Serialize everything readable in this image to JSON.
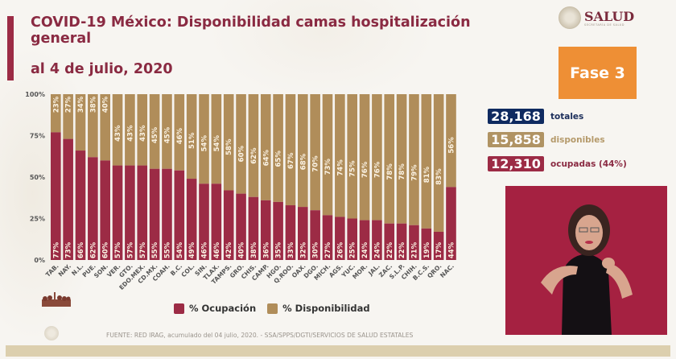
{
  "header": {
    "title": "COVID-19 México: Disponibilidad camas hospitalización general",
    "subtitle": "al 4 de julio, 2020"
  },
  "logo": {
    "icon": "coat-of-arms-seal",
    "name": "SALUD",
    "sub": "SECRETARÍA DE SALUD"
  },
  "phase": {
    "label": "Fase 3",
    "color": "#ee8f35"
  },
  "stats": [
    {
      "value": "28,168",
      "label": "totales",
      "box_color": "#0f2a60",
      "label_color": "#1b2d5a"
    },
    {
      "value": "15,858",
      "label": "disponibles",
      "box_color": "#b09363",
      "label_color": "#b59a6b"
    },
    {
      "value": "12,310",
      "label": "ocupadas (44%)",
      "box_color": "#9c2b45",
      "label_color": "#8a2a42"
    }
  ],
  "legend": {
    "items": [
      {
        "label": "% Ocupación",
        "color": "#9c2b45"
      },
      {
        "label": "% Disponibilidad",
        "color": "#b08d5a"
      }
    ]
  },
  "source": "FUENTE: RED IRAG, acumulado del 04 julio, 2020. -  SSA/SPPS/DGTI/SERVICIOS DE SALUD ESTATALES",
  "interpreter_video": {
    "description": "sign-language-interpreter",
    "bg_color": "#a52141"
  },
  "chart_data": {
    "type": "bar",
    "stacked": true,
    "title": "COVID-19 México: Disponibilidad camas hospitalización general",
    "xlabel": "",
    "ylabel": "",
    "ylim": [
      0,
      100
    ],
    "yticks": [
      "0%",
      "25%",
      "50%",
      "75%",
      "100%"
    ],
    "yticks_values": [
      0,
      25,
      50,
      75,
      100
    ],
    "categories": [
      "TAB.",
      "NAY.",
      "N.L.",
      "PUE.",
      "SON.",
      "VER.",
      "GTO.",
      "EDO.MEX.",
      "CD.MX.",
      "COAH.",
      "B.C.",
      "COL.",
      "SIN.",
      "TLAX.",
      "TAMPS.",
      "GRO.",
      "CHIS.",
      "CAMP.",
      "HGO.",
      "Q.ROO.",
      "OAX.",
      "DGO.",
      "MICH.",
      "AGS.",
      "YUC.",
      "MOR.",
      "JAL.",
      "ZAC.",
      "S.L.P.",
      "CHIH.",
      "B.C.S.",
      "QRO.",
      "NAC."
    ],
    "series": [
      {
        "name": "% Ocupación",
        "color": "#9c2b45",
        "values": [
          77,
          73,
          66,
          62,
          60,
          57,
          57,
          57,
          55,
          55,
          54,
          49,
          46,
          46,
          42,
          40,
          38,
          36,
          35,
          33,
          32,
          30,
          27,
          26,
          25,
          24,
          24,
          22,
          22,
          21,
          19,
          17,
          44
        ]
      },
      {
        "name": "% Disponibilidad",
        "color": "#b08d5a",
        "values": [
          23,
          27,
          34,
          38,
          40,
          43,
          43,
          43,
          45,
          45,
          46,
          51,
          54,
          54,
          58,
          60,
          62,
          64,
          65,
          67,
          68,
          70,
          73,
          74,
          75,
          76,
          76,
          78,
          78,
          79,
          81,
          83,
          56
        ]
      }
    ],
    "legend": "bottom",
    "grid": false
  }
}
